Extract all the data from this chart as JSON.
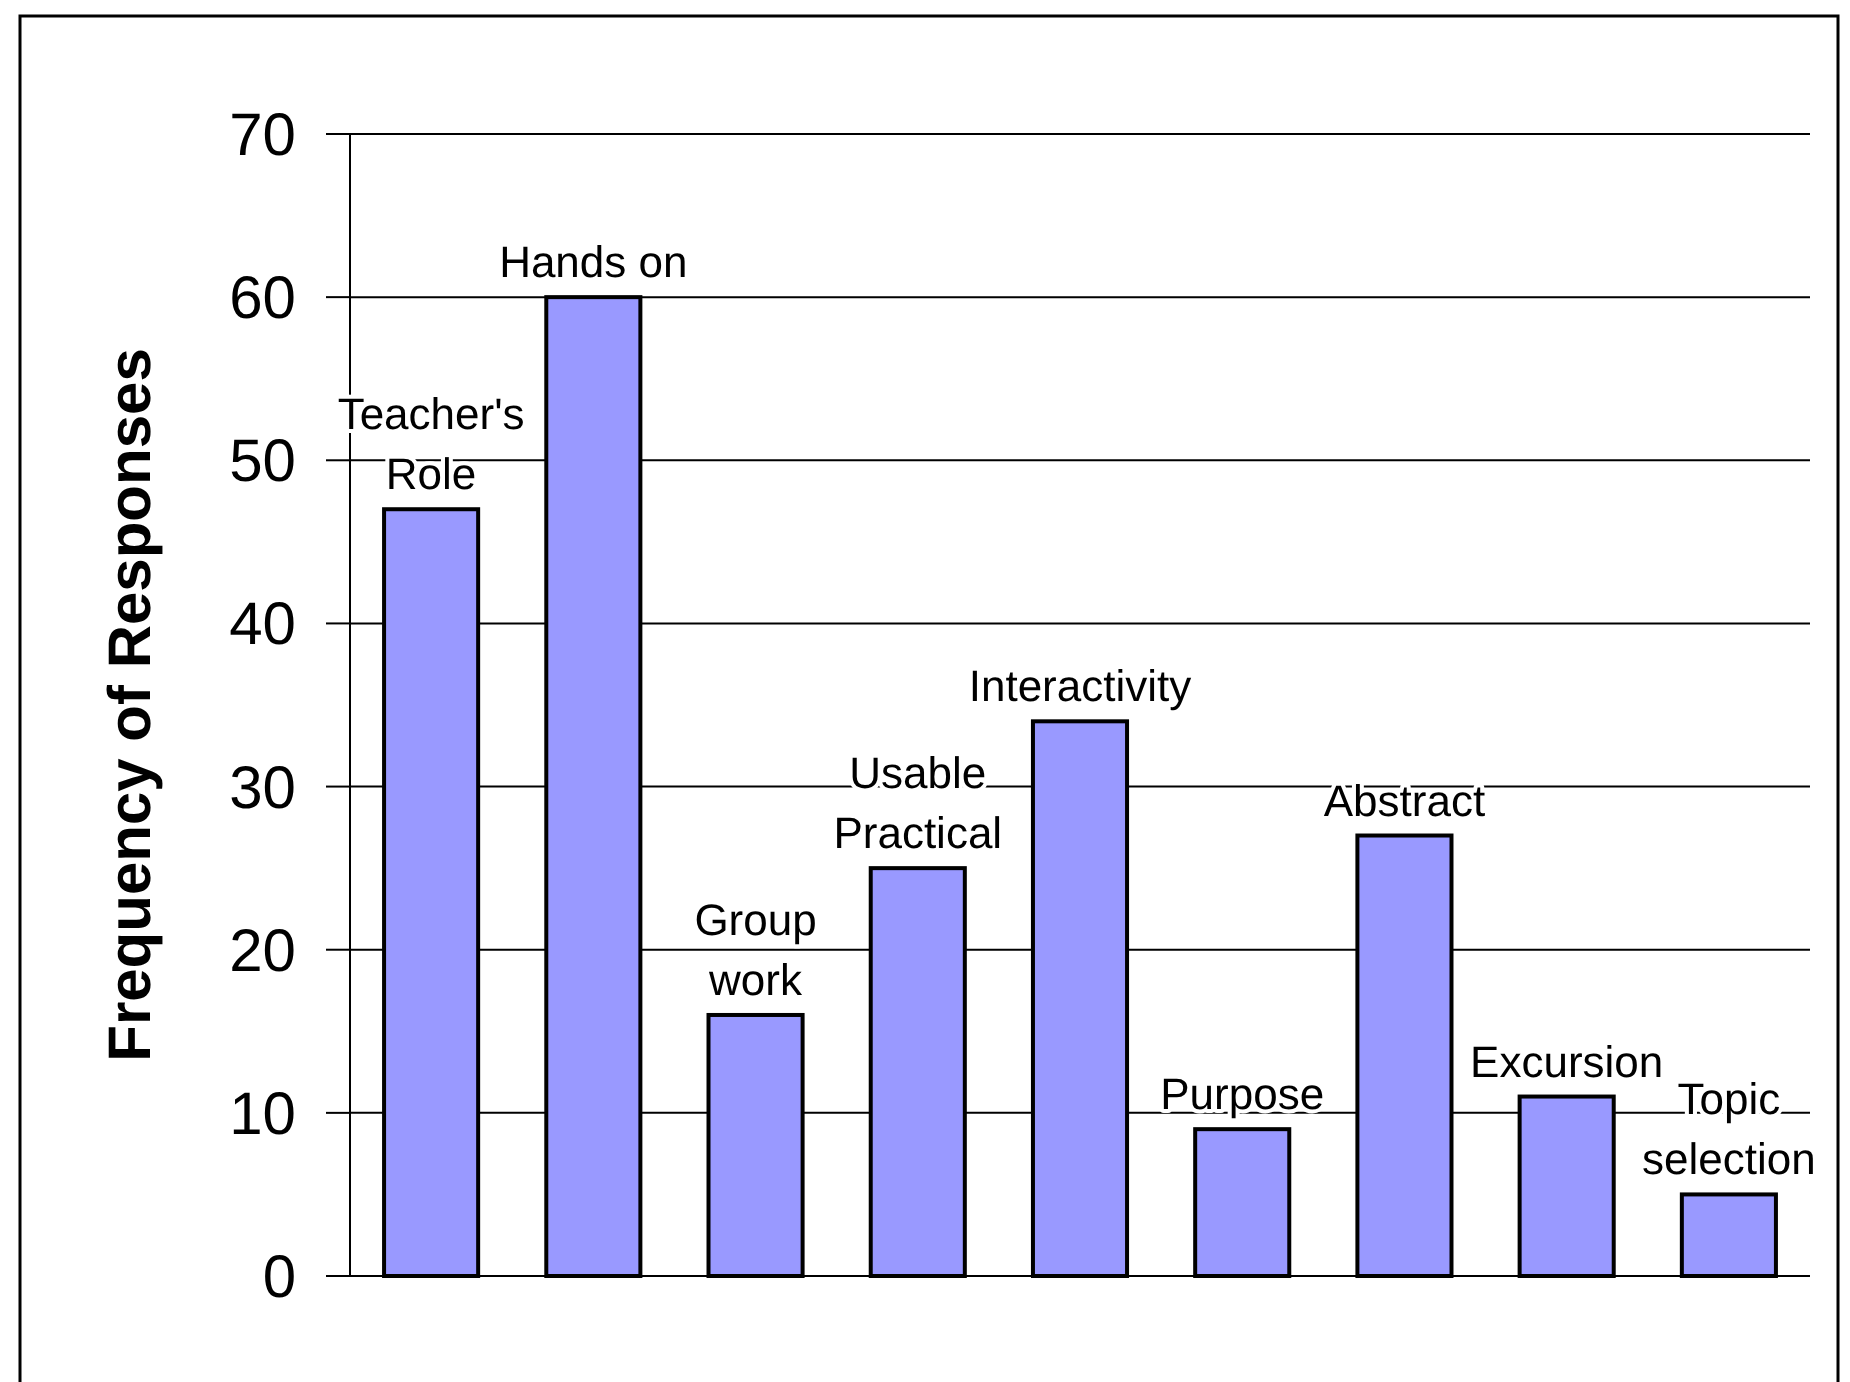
{
  "chart_data": {
    "type": "bar",
    "ylabel": "Frequency of Responses",
    "categories": [
      "Teacher's\nRole",
      "Hands on",
      "Group\nwork",
      "Usable\nPractical",
      "Interactivity",
      "Purpose",
      "Abstract",
      "Excursion",
      "Topic\nselection"
    ],
    "values": [
      47,
      60,
      16,
      25,
      34,
      9,
      27,
      11,
      5
    ],
    "color": "#9999ff",
    "ylim": [
      0,
      70
    ],
    "yticks": [
      0,
      10,
      20,
      30,
      40,
      50,
      60,
      70
    ],
    "grid": "y"
  }
}
